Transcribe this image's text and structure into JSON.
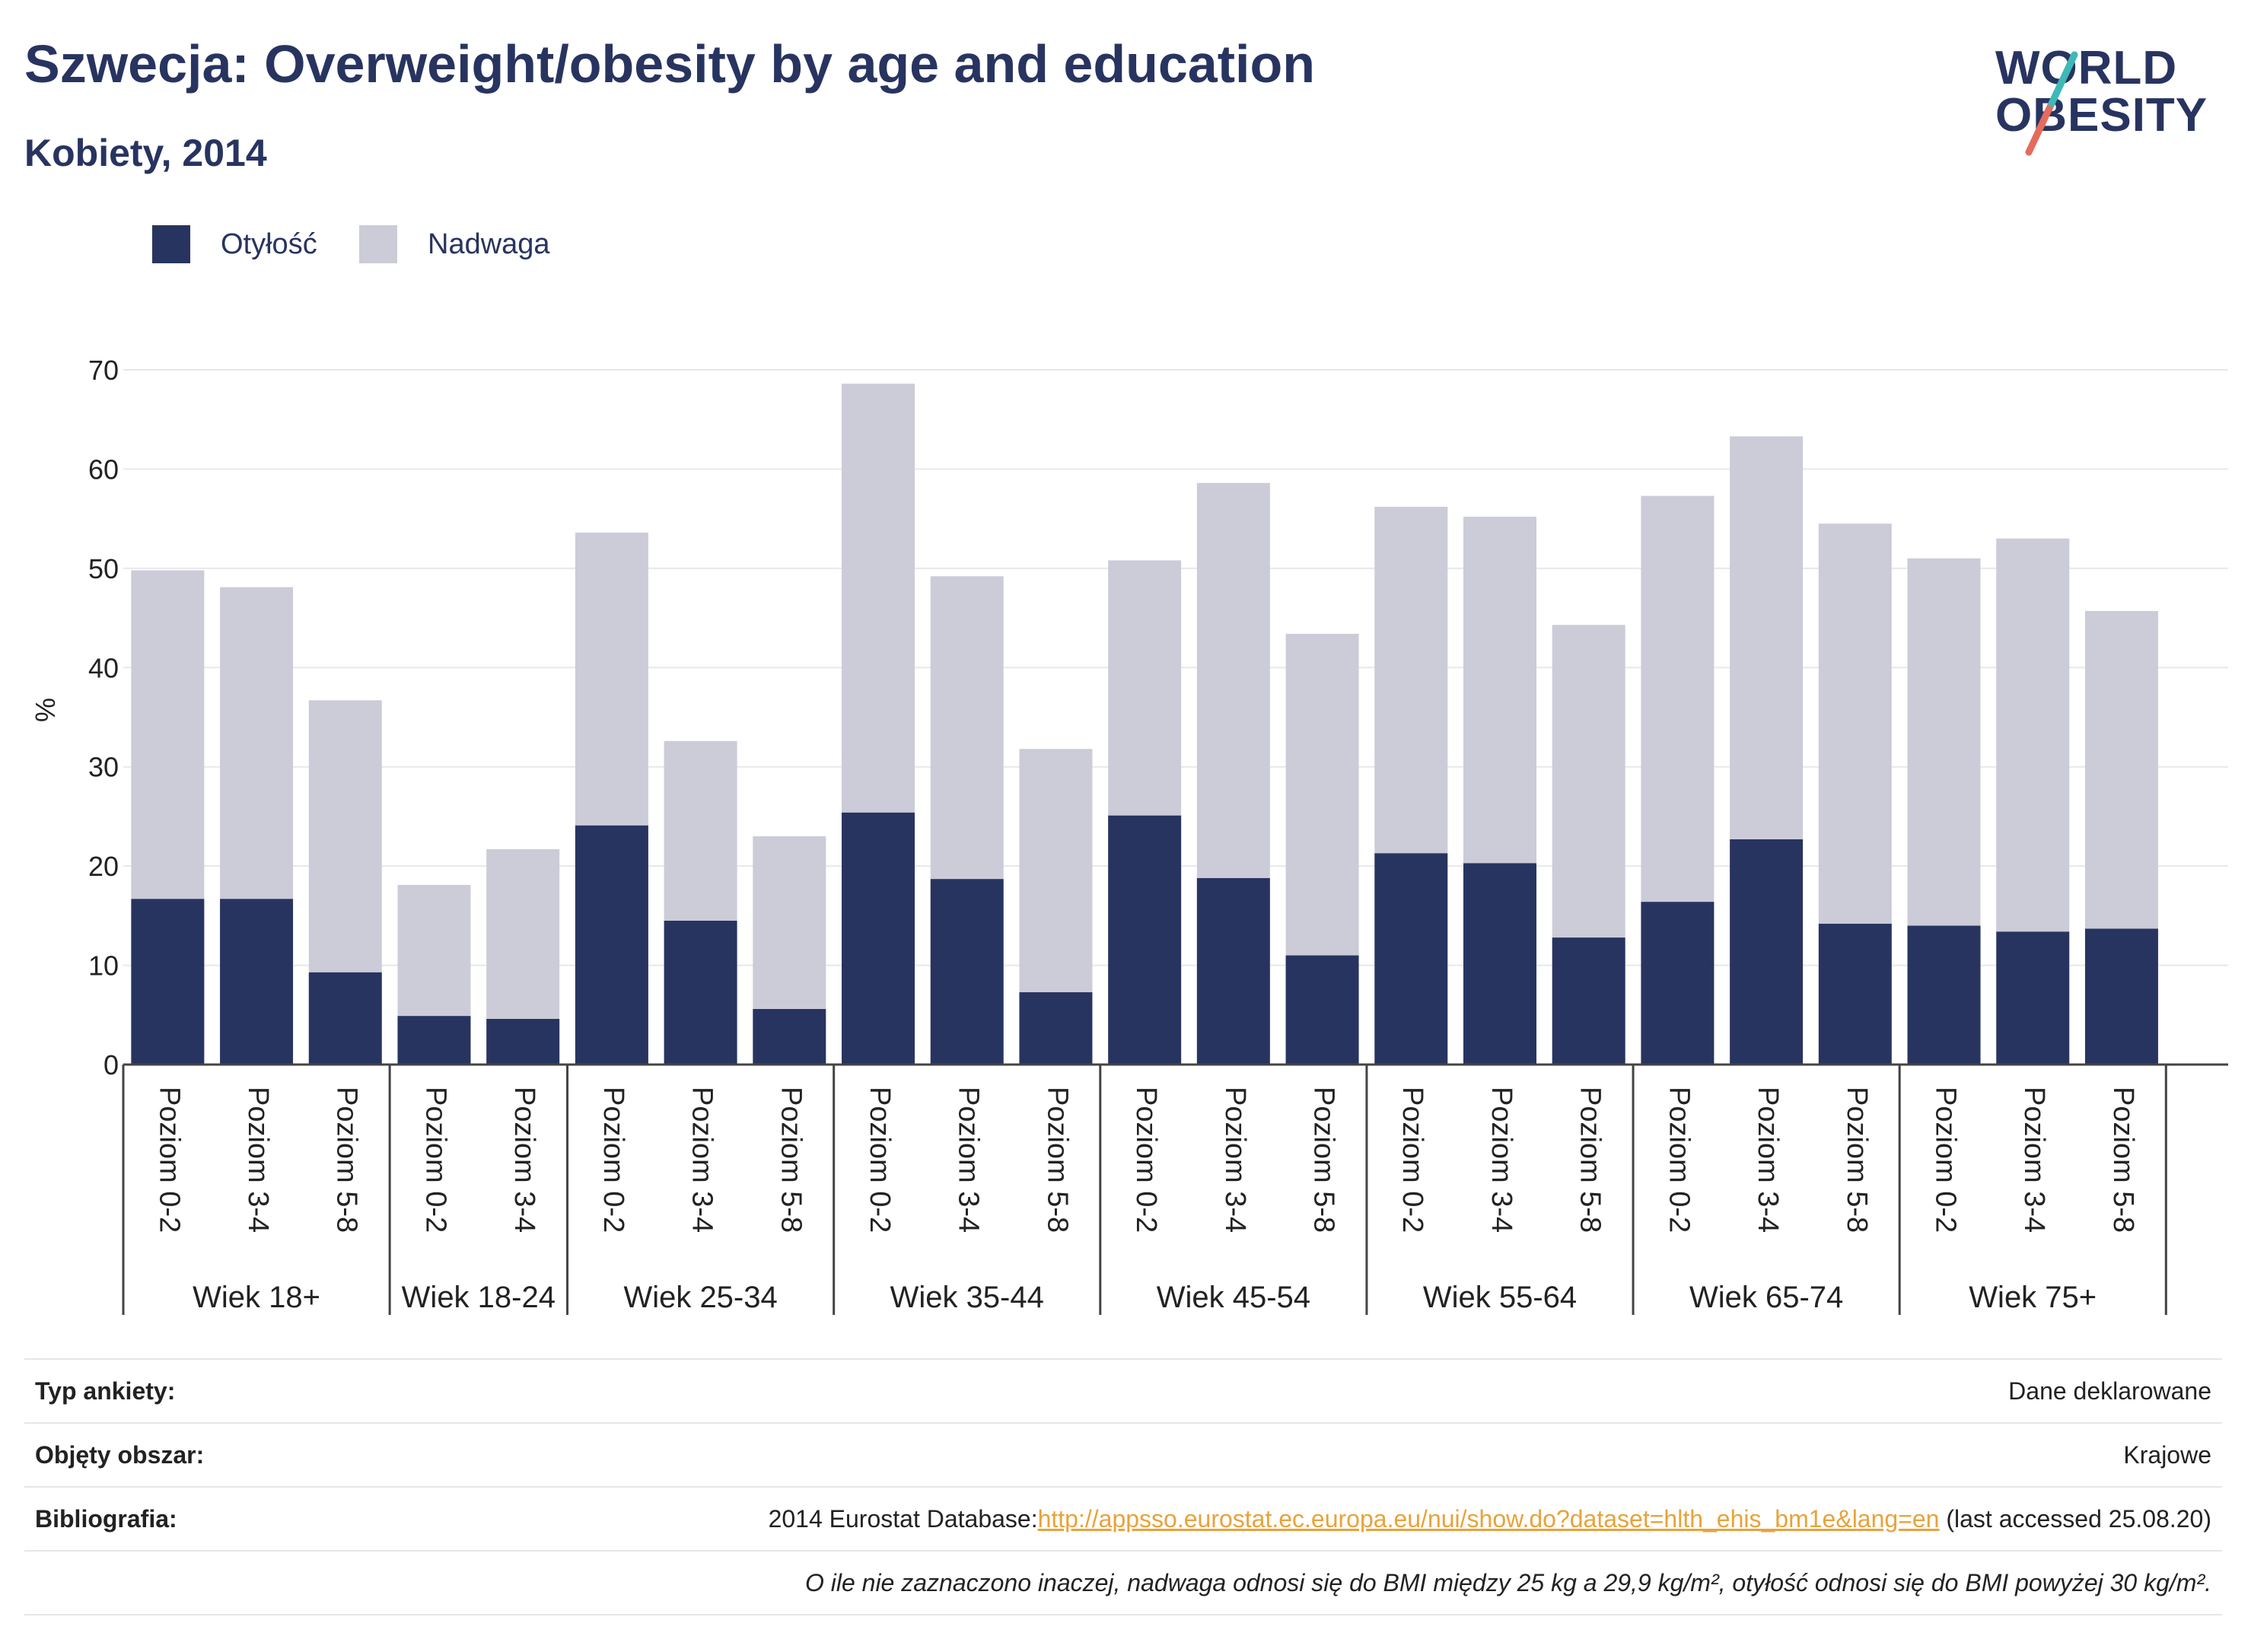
{
  "header": {
    "title": "Szwecja: Overweight/obesity by age and education",
    "subtitle": "Kobiety, 2014",
    "logo_line1": "WORLD",
    "logo_line2": "OBESITY"
  },
  "legend": {
    "items": [
      {
        "label": "Otyłość",
        "color": "#283460"
      },
      {
        "label": "Nadwaga",
        "color": "#cbccd8"
      }
    ]
  },
  "chart_data": {
    "type": "bar",
    "stacked": true,
    "ylabel": "%",
    "xlabel": "",
    "ylim": [
      0,
      70
    ],
    "yticks": [
      0,
      10,
      20,
      30,
      40,
      50,
      60,
      70
    ],
    "grid": true,
    "legend_position": "top-left",
    "groups": [
      {
        "label": "Wiek 18+",
        "categories": [
          "Poziom 0-2",
          "Poziom 3-4",
          "Poziom 5-8"
        ]
      },
      {
        "label": "Wiek 18-24",
        "categories": [
          "Poziom 0-2",
          "Poziom 3-4"
        ]
      },
      {
        "label": "Wiek 25-34",
        "categories": [
          "Poziom 0-2",
          "Poziom 3-4",
          "Poziom 5-8"
        ]
      },
      {
        "label": "Wiek 35-44",
        "categories": [
          "Poziom 0-2",
          "Poziom 3-4",
          "Poziom 5-8"
        ]
      },
      {
        "label": "Wiek 45-54",
        "categories": [
          "Poziom 0-2",
          "Poziom 3-4",
          "Poziom 5-8"
        ]
      },
      {
        "label": "Wiek 55-64",
        "categories": [
          "Poziom 0-2",
          "Poziom 3-4",
          "Poziom 5-8"
        ]
      },
      {
        "label": "Wiek 65-74",
        "categories": [
          "Poziom 0-2",
          "Poziom 3-4",
          "Poziom 5-8"
        ]
      },
      {
        "label": "Wiek 75+",
        "categories": [
          "Poziom 0-2",
          "Poziom 3-4",
          "Poziom 5-8"
        ]
      }
    ],
    "series": [
      {
        "name": "Otyłość",
        "color": "#283460",
        "values": [
          16.7,
          16.7,
          9.3,
          4.9,
          4.6,
          24.1,
          14.5,
          5.6,
          25.4,
          18.7,
          7.3,
          25.1,
          18.8,
          11.0,
          21.3,
          20.3,
          12.8,
          16.4,
          22.7,
          14.2,
          14.0,
          13.4,
          13.7
        ]
      },
      {
        "name": "Nadwaga",
        "color": "#cbccd8",
        "values": [
          33.1,
          31.4,
          27.4,
          13.2,
          17.1,
          29.5,
          18.1,
          17.4,
          43.2,
          30.5,
          24.5,
          25.7,
          39.8,
          32.4,
          34.9,
          34.9,
          31.5,
          40.9,
          40.6,
          40.3,
          37.0,
          39.6,
          32.0
        ]
      }
    ]
  },
  "footer": {
    "survey_label": "Typ ankiety:",
    "survey_value": "Dane deklarowane",
    "area_label": "Objęty obszar:",
    "area_value": "Krajowe",
    "biblio_label": "Bibliografia:",
    "biblio_prefix": "2014 Eurostat Database:",
    "biblio_link": "http://appsso.eurostat.ec.europa.eu/nui/show.do?dataset=hlth_ehis_bm1e&lang=en",
    "biblio_suffix": " (last accessed 25.08.20)",
    "note": "O ile nie zaznaczono inaczej, nadwaga odnosi się do BMI między 25 kg a 29,9 kg/m², otyłość odnosi się do BMI powyżej 30 kg/m²."
  }
}
